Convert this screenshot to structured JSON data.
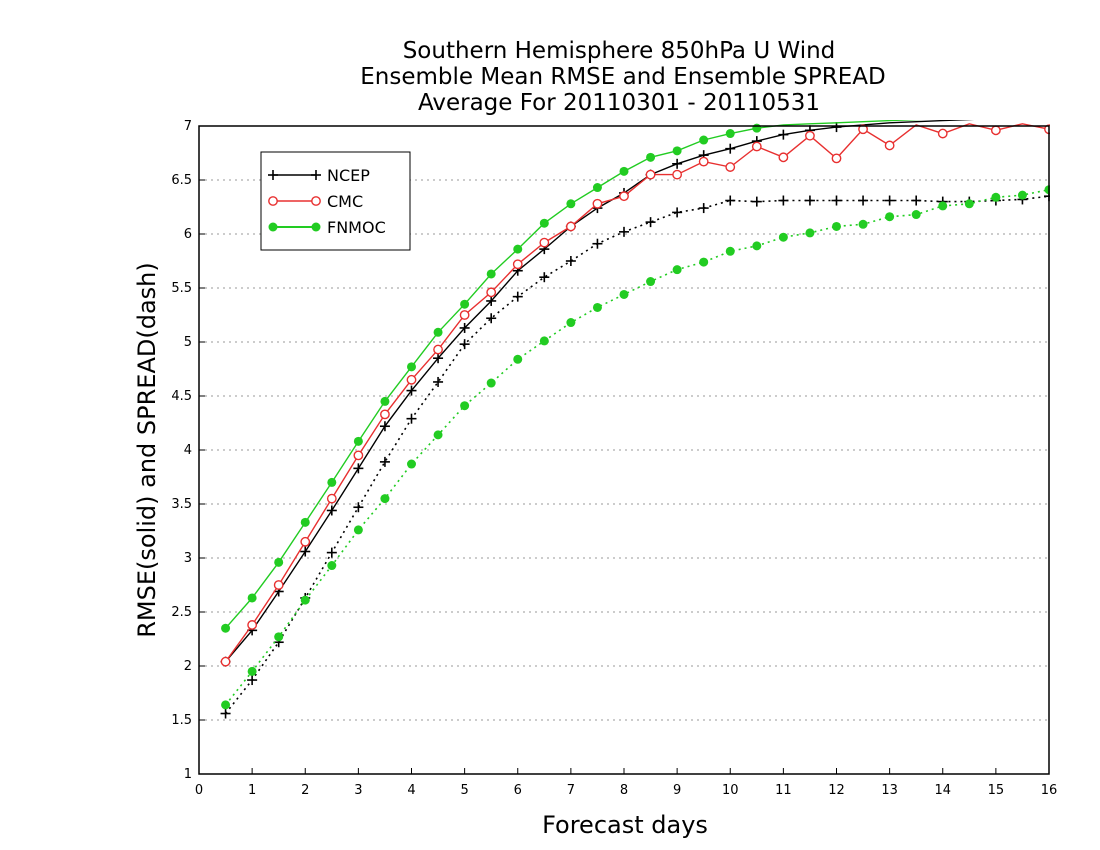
{
  "chart_data": {
    "type": "line",
    "title": [
      "Southern Hemisphere 850hPa U Wind",
      "Ensemble Mean RMSE and Ensemble SPREAD",
      "Average For 20110301 - 20110531"
    ],
    "xlabel": "Forecast days",
    "ylabel": "RMSE(solid) and SPREAD(dash)",
    "xlim": [
      0,
      16
    ],
    "ylim": [
      1,
      7
    ],
    "xticks": [
      "0",
      "1",
      "2",
      "3",
      "4",
      "5",
      "6",
      "7",
      "8",
      "9",
      "10",
      "11",
      "12",
      "13",
      "14",
      "15",
      "16"
    ],
    "yticks": [
      "1",
      "1.5",
      "2",
      "2.5",
      "3",
      "3.5",
      "4",
      "4.5",
      "5",
      "5.5",
      "6",
      "6.5",
      "7"
    ],
    "grid": true,
    "legend_position": "top-left",
    "legend": [
      "NCEP",
      "CMC",
      "FNMOC"
    ],
    "series": [
      {
        "name": "NCEP",
        "metric": "rmse",
        "style": "solid",
        "marker": "plus",
        "color": "#000000",
        "x": [
          0.5,
          1,
          1.5,
          2,
          2.5,
          3,
          3.5,
          4,
          4.5,
          5,
          5.5,
          6,
          6.5,
          7,
          7.5,
          8,
          8.5,
          9,
          9.5,
          10,
          10.5,
          11,
          11.5,
          12,
          12.5,
          13,
          13.5,
          14,
          14.5,
          15,
          15.5,
          16
        ],
        "y": [
          2.04,
          2.33,
          2.69,
          3.06,
          3.44,
          3.83,
          4.22,
          4.55,
          4.85,
          5.13,
          5.38,
          5.66,
          5.86,
          6.07,
          6.24,
          6.38,
          6.55,
          6.65,
          6.73,
          6.79,
          6.86,
          6.92,
          6.96,
          6.99,
          7.01,
          7.03,
          7.04,
          7.05,
          7.06,
          7.07,
          7.08,
          7.09
        ]
      },
      {
        "name": "CMC",
        "metric": "rmse",
        "style": "solid",
        "marker": "open-circle",
        "color": "#e83030",
        "x": [
          0.5,
          1,
          1.5,
          2,
          2.5,
          3,
          3.5,
          4,
          4.5,
          5,
          5.5,
          6,
          6.5,
          7,
          7.5,
          8,
          8.5,
          9,
          9.5,
          10,
          10.5,
          11,
          11.5,
          12,
          12.5,
          13,
          13.5,
          14,
          14.5,
          15,
          15.5,
          16
        ],
        "y": [
          2.04,
          2.38,
          2.75,
          3.15,
          3.55,
          3.95,
          4.33,
          4.65,
          4.93,
          5.25,
          5.46,
          5.72,
          5.92,
          6.07,
          6.28,
          6.35,
          6.55,
          6.55,
          6.67,
          6.62,
          6.81,
          6.71,
          6.91,
          6.7,
          6.97,
          6.82,
          7.01,
          6.93,
          7.02,
          6.96,
          7.02,
          6.97
        ]
      },
      {
        "name": "FNMOC",
        "metric": "rmse",
        "style": "solid",
        "marker": "filled-circle",
        "color": "#22cc22",
        "x": [
          0.5,
          1,
          1.5,
          2,
          2.5,
          3,
          3.5,
          4,
          4.5,
          5,
          5.5,
          6,
          6.5,
          7,
          7.5,
          8,
          8.5,
          9,
          9.5,
          10,
          10.5,
          11,
          11.5,
          12,
          12.5,
          13,
          13.5,
          14,
          14.5,
          15,
          15.5,
          16
        ],
        "y": [
          2.35,
          2.63,
          2.96,
          3.33,
          3.7,
          4.08,
          4.45,
          4.77,
          5.09,
          5.35,
          5.63,
          5.86,
          6.1,
          6.28,
          6.43,
          6.58,
          6.71,
          6.77,
          6.87,
          6.93,
          6.98,
          7.01,
          7.02,
          7.03,
          7.04,
          7.05,
          7.06,
          7.07,
          7.08,
          7.09,
          7.1,
          7.1
        ]
      },
      {
        "name": "NCEP",
        "metric": "spread",
        "style": "dash",
        "marker": "plus",
        "color": "#000000",
        "x": [
          0.5,
          1,
          1.5,
          2,
          2.5,
          3,
          3.5,
          4,
          4.5,
          5,
          5.5,
          6,
          6.5,
          7,
          7.5,
          8,
          8.5,
          9,
          9.5,
          10,
          10.5,
          11,
          11.5,
          12,
          12.5,
          13,
          13.5,
          14,
          14.5,
          15,
          15.5,
          16
        ],
        "y": [
          1.56,
          1.87,
          2.22,
          2.63,
          3.05,
          3.47,
          3.89,
          4.29,
          4.63,
          4.98,
          5.22,
          5.42,
          5.6,
          5.75,
          5.91,
          6.02,
          6.11,
          6.2,
          6.24,
          6.31,
          6.3,
          6.31,
          6.31,
          6.31,
          6.31,
          6.31,
          6.31,
          6.3,
          6.3,
          6.31,
          6.32,
          6.35
        ]
      },
      {
        "name": "FNMOC",
        "metric": "spread",
        "style": "dash",
        "marker": "filled-circle",
        "color": "#22cc22",
        "x": [
          0.5,
          1,
          1.5,
          2,
          2.5,
          3,
          3.5,
          4,
          4.5,
          5,
          5.5,
          6,
          6.5,
          7,
          7.5,
          8,
          8.5,
          9,
          9.5,
          10,
          10.5,
          11,
          11.5,
          12,
          12.5,
          13,
          13.5,
          14,
          14.5,
          15,
          15.5,
          16
        ],
        "y": [
          1.64,
          1.95,
          2.27,
          2.61,
          2.93,
          3.26,
          3.55,
          3.87,
          4.14,
          4.41,
          4.62,
          4.84,
          5.01,
          5.18,
          5.32,
          5.44,
          5.56,
          5.67,
          5.74,
          5.84,
          5.89,
          5.97,
          6.01,
          6.07,
          6.09,
          6.16,
          6.18,
          6.26,
          6.28,
          6.34,
          6.36,
          6.41
        ]
      }
    ]
  }
}
